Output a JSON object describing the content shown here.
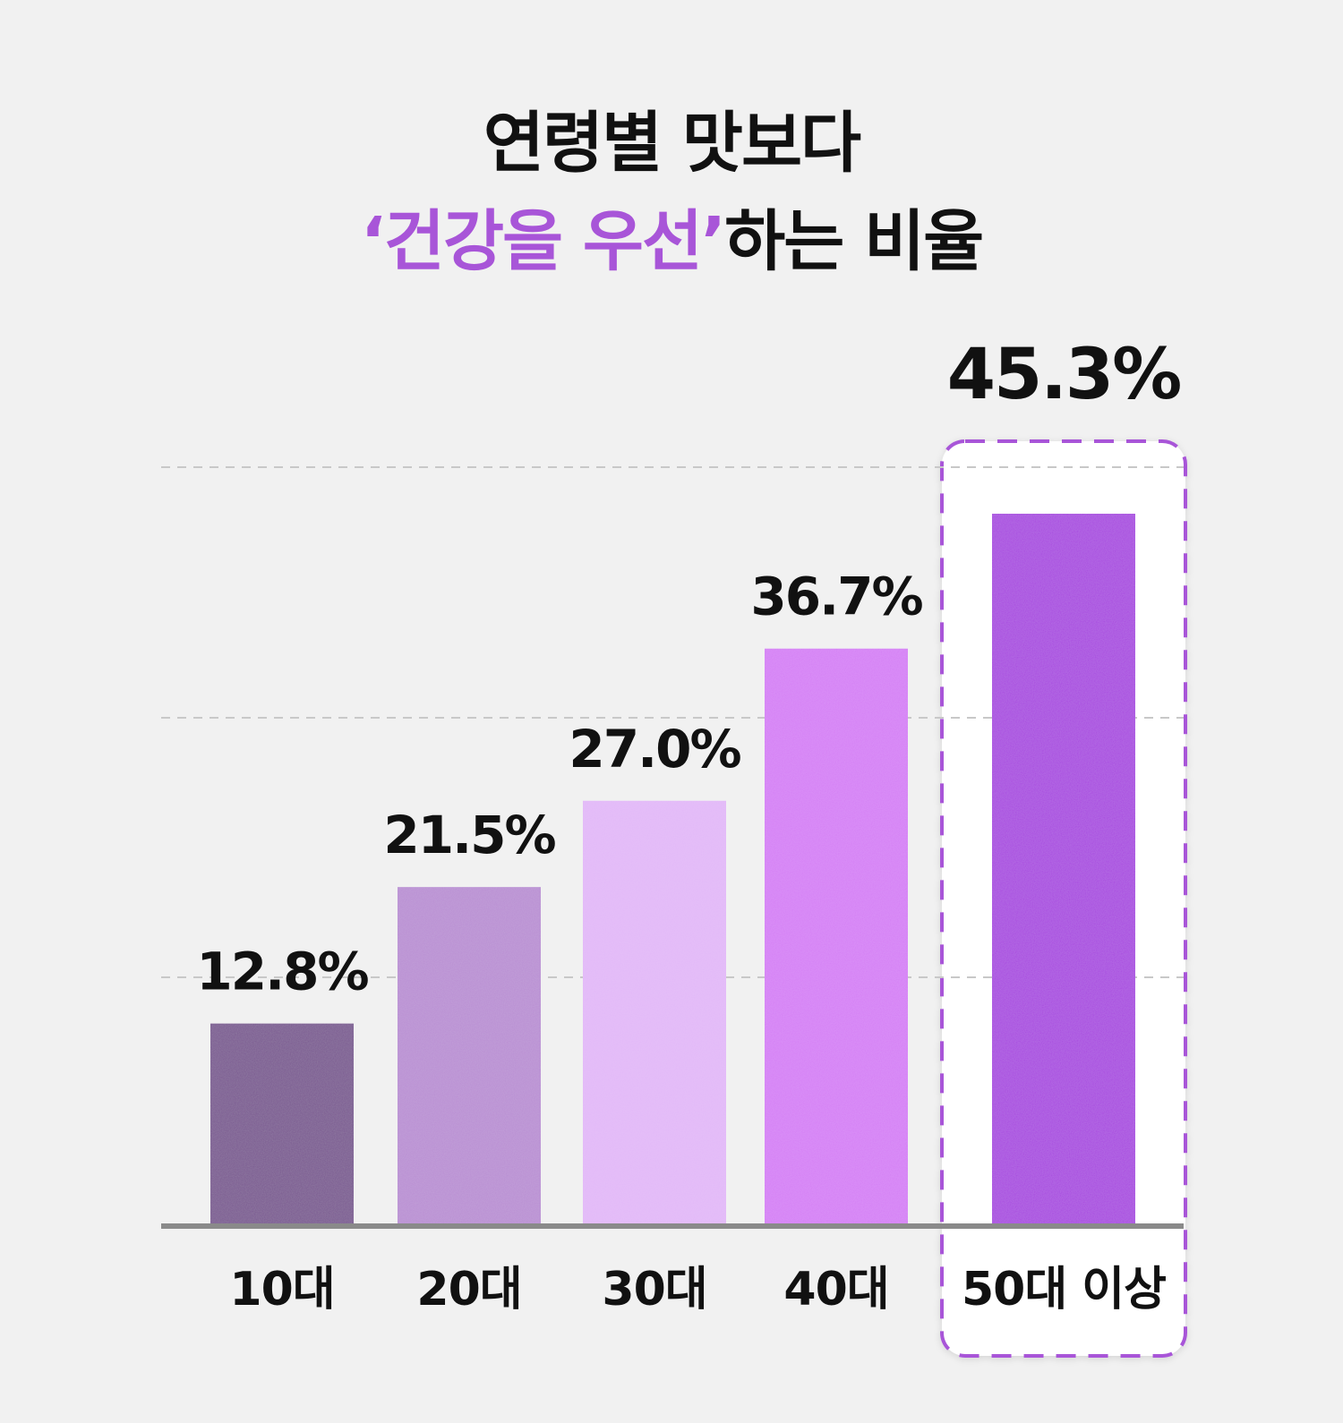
{
  "title": {
    "line1": "연령별 맛보다",
    "line2_highlight": "‘건강을 우선’",
    "line2_rest": "하는 비율"
  },
  "chart_data": {
    "type": "bar",
    "title": "연령별 맛보다 ‘건강을 우선’하는 비율",
    "categories": [
      "10대",
      "20대",
      "30대",
      "40대",
      "50대 이상"
    ],
    "values": [
      12.8,
      21.5,
      27.0,
      36.7,
      45.3
    ],
    "value_labels": [
      "12.8%",
      "21.5%",
      "27.0%",
      "36.7%",
      "45.3%"
    ],
    "unit": "%",
    "ylim": [
      0,
      48
    ],
    "grid": "dashed horizontal",
    "highlight_category": "50대 이상",
    "bar_colors": [
      "#7a5a91",
      "#b98fd3",
      "#e2b8f8",
      "#d57ff5",
      "#a949e0"
    ],
    "accent_color": "#a855d8"
  }
}
